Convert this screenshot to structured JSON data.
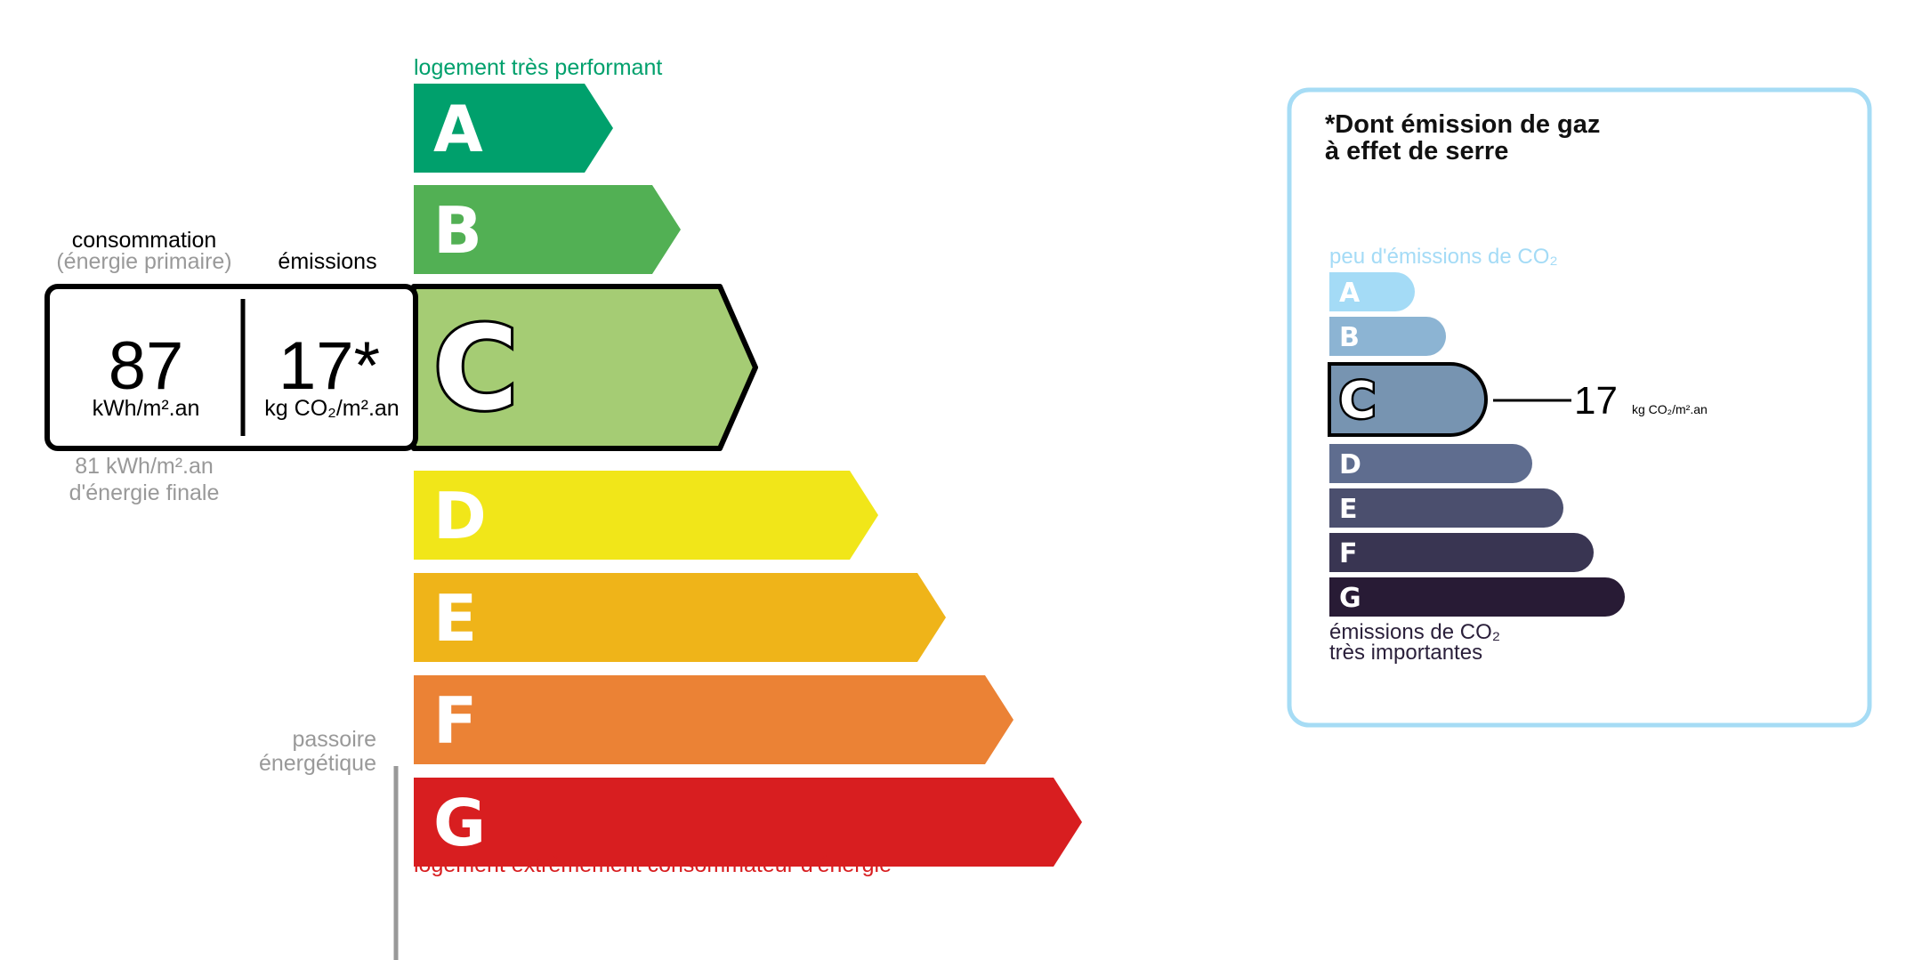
{
  "energy": {
    "top_label": "logement très performant",
    "bottom_label": "logement extrêmement consommateur d'énergie",
    "current_class": "C",
    "classes": [
      {
        "letter": "A",
        "color": "#00a06c"
      },
      {
        "letter": "B",
        "color": "#52b054"
      },
      {
        "letter": "C",
        "color": "#a5cc74"
      },
      {
        "letter": "D",
        "color": "#f1e619"
      },
      {
        "letter": "E",
        "color": "#efb419"
      },
      {
        "letter": "F",
        "color": "#eb8235"
      },
      {
        "letter": "G",
        "color": "#d81e20"
      }
    ],
    "consumption_heading": "consommation",
    "consumption_subheading": "(énergie primaire)",
    "emissions_heading": "émissions",
    "consumption_value": "87",
    "consumption_unit": "kWh/m².an",
    "emissions_value": "17*",
    "emissions_unit": "kg CO₂/m².an",
    "final_energy_line1": "81 kWh/m².an",
    "final_energy_line2": "d'énergie finale",
    "passoire_line1": "passoire",
    "passoire_line2": "énergétique",
    "top_label_color": "#00a06c",
    "bottom_label_color": "#d81e20"
  },
  "ghg": {
    "title_line1": "*Dont émission de gaz",
    "title_line2": "à effet de serre",
    "top_label": "peu d'émissions de CO₂",
    "bottom_label_line1": "émissions de CO₂",
    "bottom_label_line2": "très importantes",
    "current_class": "C",
    "value": "17",
    "unit": "kg CO₂/m².an",
    "border_color": "#a6dcf5",
    "classes": [
      {
        "letter": "A",
        "color": "#a4dbf6"
      },
      {
        "letter": "B",
        "color": "#8cb4d3"
      },
      {
        "letter": "C",
        "color": "#7794b1"
      },
      {
        "letter": "D",
        "color": "#5f6d8f"
      },
      {
        "letter": "E",
        "color": "#4b4f6e"
      },
      {
        "letter": "F",
        "color": "#393552"
      },
      {
        "letter": "G",
        "color": "#281b35"
      }
    ]
  }
}
